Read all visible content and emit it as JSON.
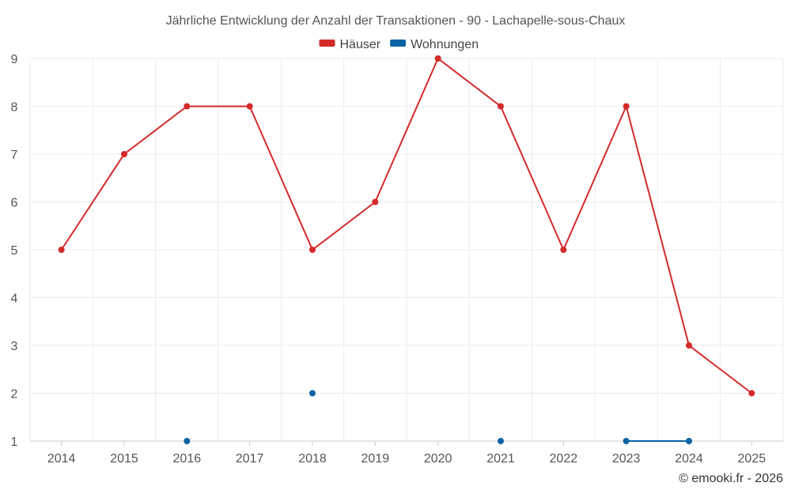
{
  "chart_data": {
    "type": "line",
    "title": "Jährliche Entwicklung der Anzahl der Transaktionen - 90 - Lachapelle-sous-Chaux",
    "categories": [
      "2014",
      "2015",
      "2016",
      "2017",
      "2018",
      "2019",
      "2020",
      "2021",
      "2022",
      "2023",
      "2024",
      "2025"
    ],
    "ylim": [
      1,
      9
    ],
    "yticks": [
      "1",
      "2",
      "3",
      "4",
      "5",
      "6",
      "7",
      "8",
      "9"
    ],
    "grid": true,
    "legend_position": "top-center",
    "series": [
      {
        "name": "Häuser",
        "color": "#d42a2a",
        "values": [
          5,
          7,
          8,
          8,
          5,
          6,
          9,
          8,
          5,
          8,
          3,
          2
        ]
      },
      {
        "name": "Wohnungen",
        "color": "#0a64a4",
        "values": [
          null,
          null,
          1,
          null,
          2,
          null,
          null,
          1,
          null,
          1,
          1,
          null
        ]
      }
    ]
  },
  "credit": "© emooki.fr - 2026"
}
